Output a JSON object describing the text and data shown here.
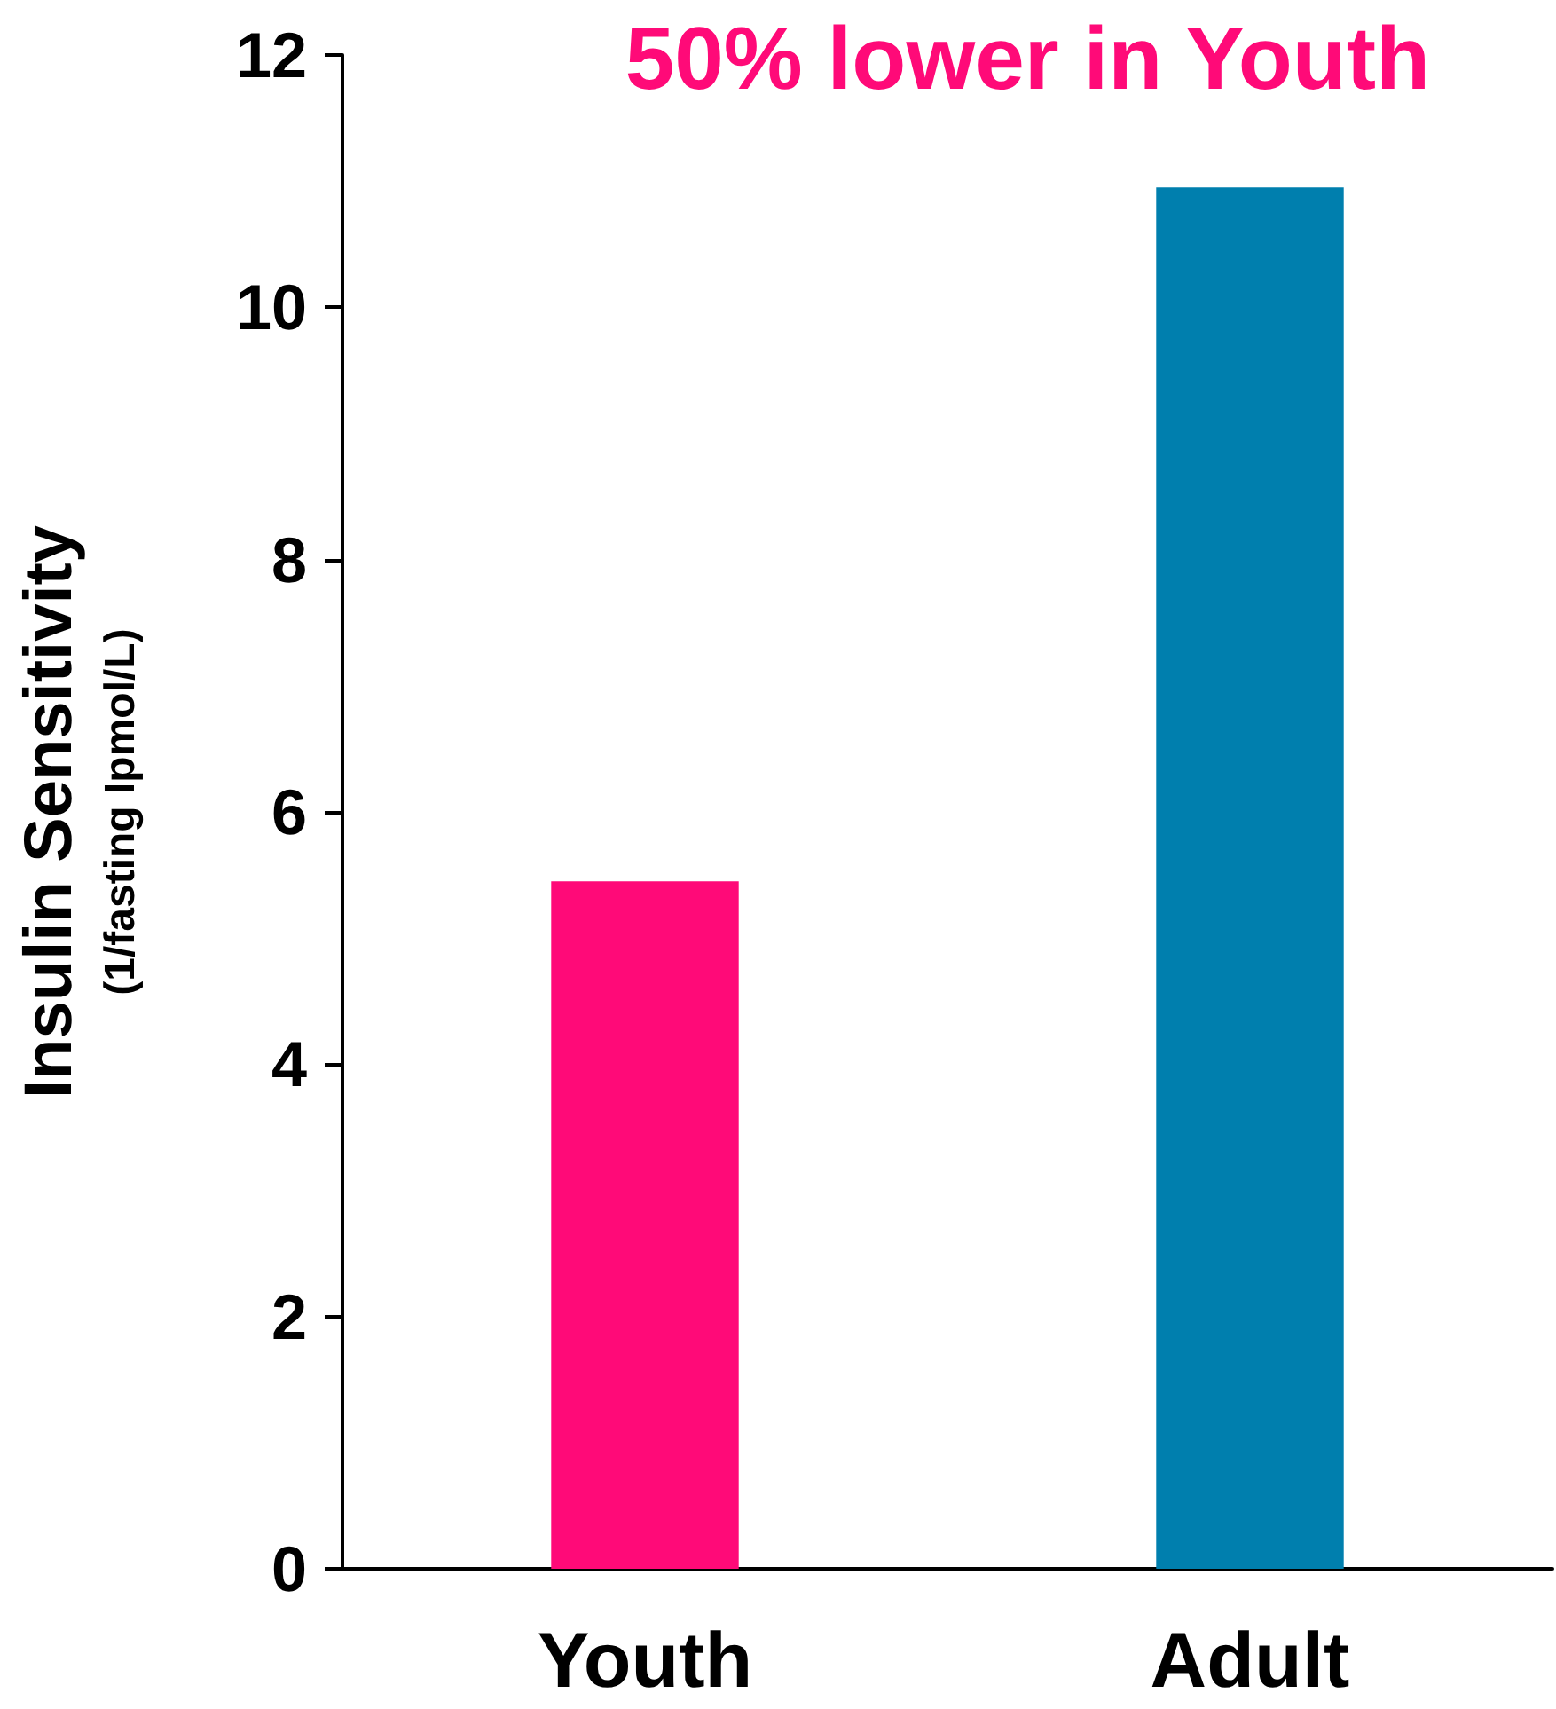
{
  "chart_data": {
    "type": "bar",
    "annotations": [
      "50% lower in Youth"
    ],
    "ylabel": "Insulin Sensitivity\n(1/fasting Ipmol/L)",
    "categories": [
      "Youth",
      "Adult"
    ],
    "values": [
      5.45,
      10.95
    ],
    "colors": [
      "#ff0a78",
      "#007fae"
    ],
    "ylim": [
      0,
      12
    ],
    "yticks": [
      0,
      2,
      4,
      6,
      8,
      10,
      12
    ],
    "grid": false
  }
}
